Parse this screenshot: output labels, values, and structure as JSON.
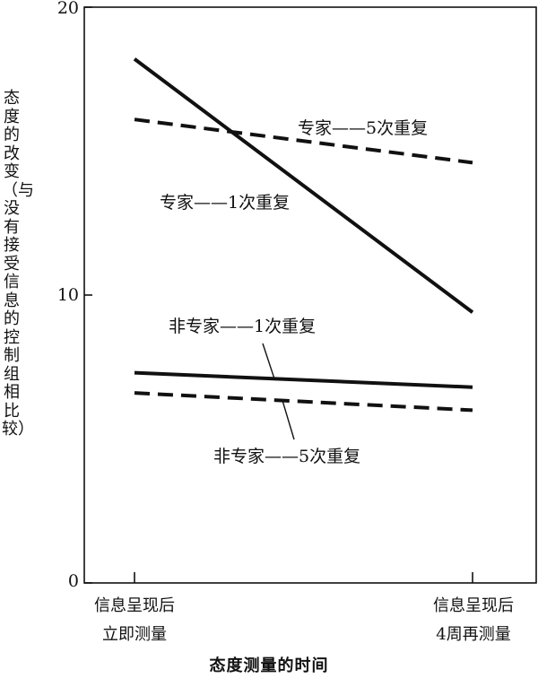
{
  "chart_data": {
    "type": "line",
    "title": "",
    "ylabel": "态度的改变（与没有接受信息的控制组相比较）",
    "xlabel": "态度测量的时间",
    "ylim": [
      0,
      20
    ],
    "yticks": [
      "0",
      "10",
      "20"
    ],
    "categories": [
      {
        "line1": "信息呈现后",
        "line2": "立即测量"
      },
      {
        "line1": "信息呈现后",
        "line2": "4周再测量"
      }
    ],
    "grid": false,
    "legend": "none",
    "series": [
      {
        "name": "专家——5次重复",
        "values": [
          16.1,
          14.6
        ],
        "style": "dashed"
      },
      {
        "name": "专家——1次重复",
        "values": [
          18.2,
          9.4
        ],
        "style": "solid"
      },
      {
        "name": "非专家——1次重复",
        "values": [
          7.3,
          6.8
        ],
        "style": "solid"
      },
      {
        "name": "非专家——5次重复",
        "values": [
          6.6,
          6.0
        ],
        "style": "dashed"
      }
    ]
  }
}
